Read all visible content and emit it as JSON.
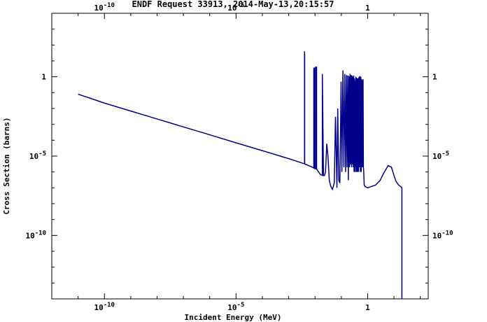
{
  "chart_data": {
    "type": "line",
    "title": "ENDF Request 33913, 2014-May-13,20:15:57",
    "xlabel": "Incident Energy (MeV)",
    "ylabel": "Cross Section (barns)",
    "xscale": "log",
    "yscale": "log",
    "xlim": [
      1e-12,
      200.0
    ],
    "ylim": [
      1e-14,
      10000.0
    ],
    "grid": false,
    "x_ticks": [
      {
        "value": 1e-10,
        "base": "10",
        "exp": "-10"
      },
      {
        "value": 1e-05,
        "base": "10",
        "exp": "-5"
      },
      {
        "value": 1,
        "base": "1",
        "exp": ""
      }
    ],
    "y_ticks": [
      {
        "value": 1,
        "base": "1",
        "exp": ""
      },
      {
        "value": 1e-05,
        "base": "10",
        "exp": "-5"
      },
      {
        "value": 1e-10,
        "base": "10",
        "exp": "-10"
      }
    ],
    "series": [
      {
        "color": "#00008b",
        "x": [
          1e-11,
          1e-10,
          1e-09,
          1e-08,
          1e-07,
          1e-06,
          1e-05,
          0.0001,
          0.001,
          0.0035,
          0.004,
          0.004,
          0.00405,
          0.00405,
          0.007,
          0.009,
          0.009,
          0.0095,
          0.0095,
          0.0105,
          0.0105,
          0.0115,
          0.0115,
          0.016,
          0.019,
          0.019,
          0.021,
          0.023,
          0.025,
          0.028,
          0.031,
          0.035,
          0.04,
          0.046,
          0.054,
          0.06,
          0.068,
          0.073,
          0.08,
          0.088,
          0.098,
          0.105,
          0.115,
          0.125,
          0.135,
          0.145,
          0.155,
          0.165,
          0.175,
          0.185,
          0.195,
          0.205,
          0.215,
          0.225,
          0.235,
          0.245,
          0.255,
          0.265,
          0.275,
          0.285,
          0.295,
          0.305,
          0.315,
          0.325,
          0.335,
          0.345,
          0.355,
          0.365,
          0.375,
          0.385,
          0.395,
          0.41,
          0.43,
          0.45,
          0.47,
          0.49,
          0.51,
          0.53,
          0.55,
          0.57,
          0.59,
          0.61,
          0.63,
          0.65,
          0.67,
          0.69,
          0.71,
          0.74,
          0.8,
          1.0,
          2.0,
          3.0,
          4.0,
          6.0,
          8.0,
          10.0,
          12.0,
          15.0,
          18.0,
          20.0,
          20.0,
          20.0
        ],
        "y": [
          0.08,
          0.022,
          0.0069,
          0.0022,
          0.00069,
          0.00022,
          6.9e-05,
          2.2e-05,
          6.9e-06,
          3.5e-06,
          3.3e-06,
          40,
          20,
          3.2e-06,
          2.2e-06,
          1.8e-06,
          3.5,
          3.5,
          1.7e-06,
          1.6e-06,
          4,
          4,
          1.5e-06,
          7e-07,
          6e-07,
          1.5,
          6e-07,
          6e-07,
          1e-06,
          6e-05,
          1e-05,
          3e-07,
          1.2e-07,
          8e-08,
          2e-07,
          0.003,
          1e-07,
          0.01,
          3e-07,
          2e-07,
          0.5,
          1e-06,
          2.5,
          2e-06,
          1.5,
          1e-06,
          1.3,
          2e-06,
          1.2,
          3e-07,
          1.1,
          2e-06,
          1.5,
          3e-06,
          1.3,
          2e-06,
          1.2,
          3e-06,
          1.0,
          2e-06,
          1.2,
          1e-06,
          0.8,
          1e-06,
          0.6,
          2e-06,
          1.0,
          1e-06,
          0.9,
          1e-06,
          0.8,
          1e-06,
          0.8,
          1e-06,
          1.0,
          2e-06,
          1.1,
          1e-06,
          1.0,
          1e-06,
          0.7,
          2e-06,
          0.6,
          2e-06,
          0.7,
          2e-06,
          1e-06,
          1.5e-07,
          1.2e-07,
          1e-07,
          1.5e-07,
          3e-07,
          8e-07,
          2.5e-06,
          2e-06,
          6e-07,
          2.5e-07,
          1.5e-07,
          1.2e-07,
          1e-07,
          1e-12,
          1e-14
        ]
      }
    ]
  }
}
